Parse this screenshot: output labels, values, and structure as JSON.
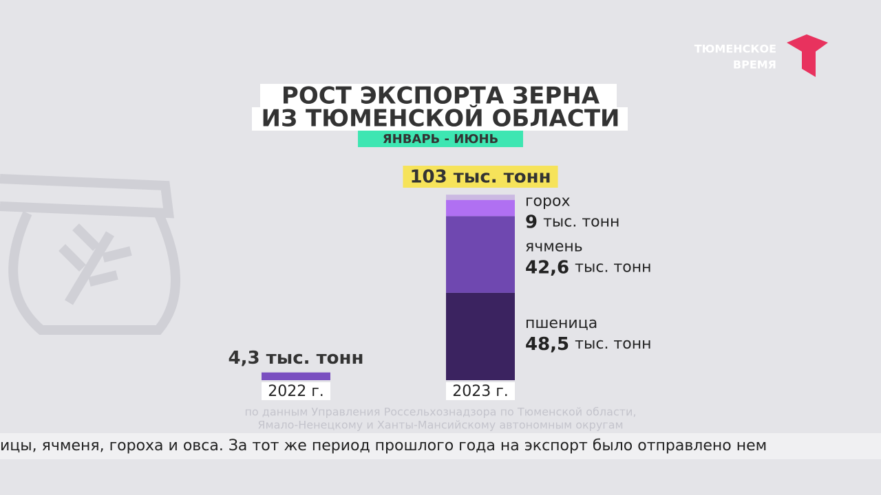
{
  "brand": "ТЮМЕНСКОЕ ВРЕМЯ",
  "chart_data": {
    "type": "stacked-bar",
    "title_lines": [
      "РОСТ ЭКСПОРТА ЗЕРНА",
      "ИЗ ТЮМЕНСКОЙ ОБЛАСТИ"
    ],
    "subtitle": "ЯНВАРЬ - ИЮНЬ",
    "categories": [
      "2022 г.",
      "2023 г."
    ],
    "totals": {
      "values": [
        4.3,
        103
      ],
      "value_labels": [
        "4,3 тыс. тонн",
        "103 тыс. тонн"
      ],
      "color": "#7a4fc0"
    },
    "unit": "тыс. тонн",
    "series": [
      {
        "name": "пшеница",
        "color": "#3b2360",
        "values": [
          null,
          48.5
        ],
        "value_labels": [
          null,
          "48,5"
        ]
      },
      {
        "name": "ячмень",
        "color": "#6f48b0",
        "values": [
          null,
          42.6
        ],
        "value_labels": [
          null,
          "42,6"
        ]
      },
      {
        "name": "горох",
        "color": "#b070f2",
        "values": [
          null,
          9
        ],
        "value_labels": [
          null,
          "9"
        ]
      },
      {
        "color": "#cbb9e2",
        "values": [
          null,
          2.9
        ]
      }
    ],
    "source_lines": [
      "по данным Управления Россельхознадзора по Тюменской области,",
      "Ямало-Ненецкому и Ханты-Мансийскому автономным округам"
    ]
  },
  "ticker": "ицы, ячменя, гороха и овса. За тот же период прошлого года на экспорт было отправлено нем"
}
